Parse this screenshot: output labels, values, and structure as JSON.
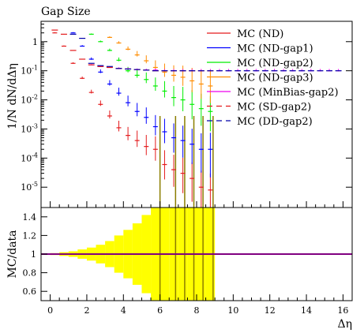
{
  "chart_data": [
    {
      "panel": "main",
      "type": "scatter",
      "title": "Gap Size",
      "ylabel": "1/N dN/dΔη",
      "xlabel": "",
      "yscale": "log",
      "xlim": [
        -0.5,
        16.5
      ],
      "ylim": [
        2e-06,
        5
      ],
      "ytick_labels": [
        "10^-5",
        "10^-4",
        "10^-3",
        "10^-2",
        "10^-1",
        "1"
      ],
      "legend_position": "top-right",
      "series": [
        {
          "name": "MC (ND)",
          "color": "#e41a1c",
          "style": "solid",
          "x": [
            0.25,
            0.75,
            1.25,
            1.75,
            2.25,
            2.75,
            3.25,
            3.75,
            4.25,
            4.75,
            5.25,
            5.75,
            6.25,
            6.75,
            7.25,
            7.75,
            8.25,
            8.75
          ],
          "y": [
            2.0,
            0.7,
            0.18,
            0.055,
            0.018,
            0.007,
            0.0028,
            0.0011,
            0.0006,
            0.0004,
            0.00025,
            0.0002,
            6e-05,
            4e-05,
            3e-05,
            2e-05,
            1e-05,
            8e-06
          ],
          "err": [
            0.02,
            0.02,
            0.03,
            0.05,
            0.08,
            0.12,
            0.18,
            0.25,
            0.32,
            0.4,
            0.5,
            0.6,
            0.7,
            0.75,
            0.8,
            0.85,
            0.9,
            0.9
          ]
        },
        {
          "name": "MC (ND-gap1)",
          "color": "#0000ff",
          "style": "solid",
          "x": [
            1.25,
            1.75,
            2.25,
            2.75,
            3.25,
            3.75,
            4.25,
            4.75,
            5.25,
            5.75,
            6.25,
            6.75,
            7.25,
            7.75,
            8.25,
            8.75
          ],
          "y": [
            2.0,
            0.7,
            0.25,
            0.09,
            0.035,
            0.017,
            0.008,
            0.004,
            0.0025,
            0.0012,
            0.0008,
            0.0005,
            0.0004,
            0.0003,
            0.0002,
            0.0002
          ],
          "err": [
            0.02,
            0.03,
            0.05,
            0.08,
            0.12,
            0.18,
            0.25,
            0.32,
            0.4,
            0.5,
            0.6,
            0.7,
            0.75,
            0.8,
            0.85,
            0.9
          ]
        },
        {
          "name": "MC (ND-gap2)",
          "color": "#00ee00",
          "style": "solid",
          "x": [
            2.25,
            2.75,
            3.25,
            3.75,
            4.25,
            4.75,
            5.25,
            5.75,
            6.25,
            6.75,
            7.25,
            7.75,
            8.25,
            8.75
          ],
          "y": [
            1.8,
            1.0,
            0.5,
            0.23,
            0.1,
            0.07,
            0.05,
            0.03,
            0.02,
            0.012,
            0.01,
            0.007,
            0.005,
            0.004
          ],
          "err": [
            0.02,
            0.03,
            0.05,
            0.08,
            0.12,
            0.18,
            0.25,
            0.32,
            0.4,
            0.5,
            0.6,
            0.7,
            0.75,
            0.8
          ]
        },
        {
          "name": "MC (ND-gap3)",
          "color": "#ff8c00",
          "style": "solid",
          "x": [
            3.25,
            3.75,
            4.25,
            4.75,
            5.25,
            5.75,
            6.25,
            6.75,
            7.25,
            7.75,
            8.25,
            8.75
          ],
          "y": [
            1.4,
            0.9,
            0.55,
            0.35,
            0.22,
            0.13,
            0.09,
            0.07,
            0.06,
            0.045,
            0.035,
            0.03
          ],
          "err": [
            0.03,
            0.05,
            0.08,
            0.12,
            0.18,
            0.25,
            0.32,
            0.4,
            0.5,
            0.6,
            0.7,
            0.75
          ]
        },
        {
          "name": "MC (MinBias-gap2)",
          "color": "#ee00ee",
          "style": "solid",
          "x": [
            2.25,
            2.75,
            3.25,
            3.75,
            4.25,
            4.75,
            5.25,
            5.75,
            6.25,
            6.75,
            7.25,
            7.75,
            8.25,
            8.75,
            9.25,
            9.75,
            10.25,
            10.75,
            11.25,
            11.75,
            12.25,
            12.75,
            13.25,
            13.75,
            14.25,
            14.75,
            15.25,
            15.75
          ],
          "y": [
            0.16,
            0.14,
            0.13,
            0.12,
            0.115,
            0.11,
            0.105,
            0.105,
            0.1,
            0.1,
            0.1,
            0.1,
            0.1,
            0.1,
            0.1,
            0.1,
            0.1,
            0.1,
            0.1,
            0.1,
            0.1,
            0.1,
            0.1,
            0.1,
            0.1,
            0.1,
            0.1,
            0.1
          ],
          "err": [
            0.02,
            0.02,
            0.02,
            0.03,
            0.03,
            0.03,
            0.04,
            0.04,
            0.05,
            0.05,
            0.05,
            0.05,
            0.05,
            0.05,
            0.05,
            0.05,
            0.05,
            0.05,
            0.05,
            0.05,
            0.05,
            0.05,
            0.05,
            0.05,
            0.05,
            0.05,
            0.05,
            0.05
          ]
        },
        {
          "name": "MC (SD-gap2)",
          "color": "#e41a1c",
          "style": "dashed",
          "x": [
            0.25,
            0.75,
            1.25,
            1.75,
            2.25,
            2.75,
            3.25,
            3.75,
            4.25,
            4.75,
            5.25,
            5.75,
            6.25,
            6.75,
            7.25,
            7.75,
            8.25,
            8.75
          ],
          "y": [
            2.5,
            1.8,
            0.5,
            0.25,
            0.16,
            0.14,
            0.13,
            0.12,
            0.115,
            0.11,
            0.105,
            0.1,
            0.1,
            0.1,
            0.1,
            0.1,
            0.1,
            0.1
          ],
          "err": [
            0,
            0,
            0,
            0,
            0,
            0,
            0,
            0,
            0,
            0,
            0,
            0,
            0,
            0,
            0,
            0,
            0,
            0
          ]
        },
        {
          "name": "MC (DD-gap2)",
          "color": "#0000aa",
          "style": "dashed",
          "x": [
            1.25,
            1.75,
            2.25,
            2.75,
            3.25,
            3.75,
            4.25,
            4.75,
            5.25,
            5.75,
            6.25,
            6.75,
            7.25,
            7.75,
            8.25,
            8.75,
            9.25,
            9.75,
            10.25,
            10.75,
            11.25,
            11.75,
            12.25,
            12.75,
            13.25,
            13.75,
            14.25,
            14.75,
            15.25,
            15.75
          ],
          "y": [
            1.8,
            1.3,
            0.18,
            0.15,
            0.14,
            0.12,
            0.115,
            0.11,
            0.105,
            0.1,
            0.1,
            0.1,
            0.1,
            0.1,
            0.1,
            0.1,
            0.1,
            0.1,
            0.1,
            0.1,
            0.1,
            0.1,
            0.1,
            0.1,
            0.1,
            0.1,
            0.1,
            0.1,
            0.1,
            0.1
          ],
          "err": [
            0,
            0,
            0,
            0,
            0,
            0,
            0,
            0,
            0,
            0,
            0,
            0,
            0,
            0,
            0,
            0,
            0,
            0,
            0,
            0,
            0,
            0,
            0,
            0,
            0,
            0,
            0,
            0,
            0,
            0
          ]
        }
      ]
    },
    {
      "panel": "ratio",
      "type": "area",
      "ylabel": "MC/data",
      "xlabel": "Δη",
      "xlim": [
        -0.5,
        16.5
      ],
      "ylim": [
        0.5,
        1.5
      ],
      "yticks": [
        0.6,
        0.8,
        1,
        1.2,
        1.4
      ],
      "xticks": [
        0,
        2,
        4,
        6,
        8,
        10,
        12,
        14,
        16
      ],
      "band_color": "#ffff00",
      "line_color": "#800080",
      "band_x": [
        -0.25,
        0.25,
        0.75,
        1.25,
        1.75,
        2.25,
        2.75,
        3.25,
        3.75,
        4.25,
        4.75,
        5.25,
        5.75,
        6.25,
        6.75,
        7.25,
        7.75,
        8.25,
        8.75
      ],
      "band_halfwidth": [
        0.002,
        0.01,
        0.02,
        0.03,
        0.05,
        0.07,
        0.1,
        0.14,
        0.2,
        0.26,
        0.33,
        0.42,
        0.5,
        0.5,
        0.5,
        0.5,
        0.5,
        0.5,
        0.5
      ],
      "vertical_lines_x": [
        6.0,
        6.85,
        7.35,
        7.85,
        8.35,
        8.9
      ],
      "vertical_line_color": "#8b7d00"
    }
  ]
}
